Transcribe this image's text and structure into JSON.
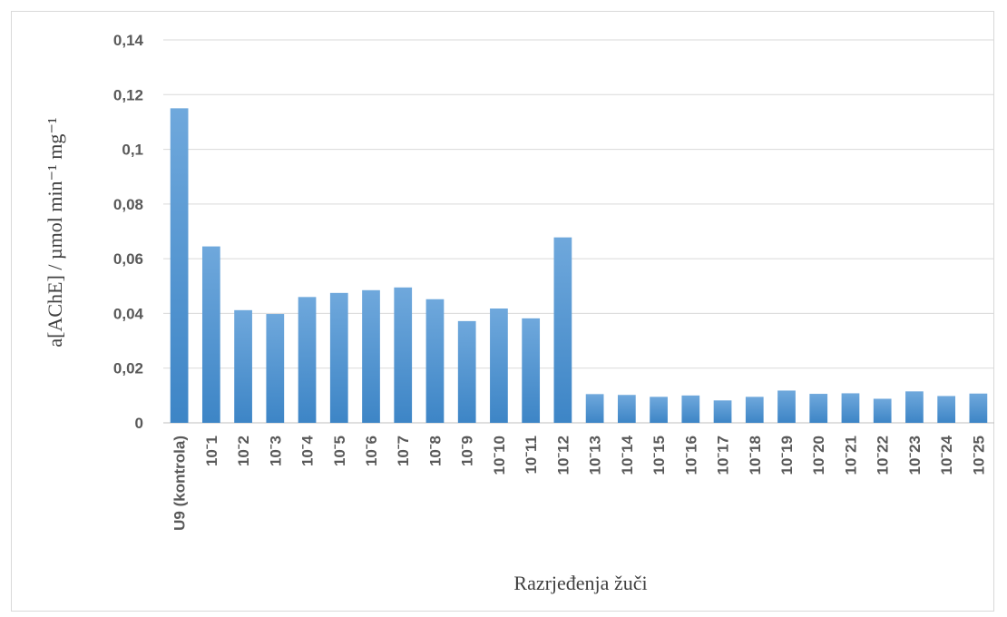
{
  "chart_data": {
    "type": "bar",
    "xlabel": "Razrjeđenja žuči",
    "ylabel": "a[AChE] / µmol min⁻¹ mg⁻¹",
    "ylim": [
      0,
      0.14
    ],
    "yticks": [
      "0",
      "0,02",
      "0,04",
      "0,06",
      "0,08",
      "0,1",
      "0,12",
      "0,14"
    ],
    "ytick_values": [
      0,
      0.02,
      0.04,
      0.06,
      0.08,
      0.1,
      0.12,
      0.14
    ],
    "grid": true,
    "legend": "none",
    "bar_color": "#5b9bd5",
    "categories": [
      "U9 (kontrola)",
      "10ˉ1",
      "10ˉ2",
      "10ˉ3",
      "10ˉ4",
      "10ˉ5",
      "10ˉ6",
      "10ˉ7",
      "10ˉ8",
      "10ˉ9",
      "10ˉ10",
      "10ˉ11",
      "10ˉ12",
      "10ˉ13",
      "10ˉ14",
      "10ˉ15",
      "10ˉ16",
      "10ˉ17",
      "10ˉ18",
      "10ˉ19",
      "10ˉ20",
      "10ˉ21",
      "10ˉ22",
      "10ˉ23",
      "10ˉ24",
      "10ˉ25"
    ],
    "values": [
      0.115,
      0.0645,
      0.0412,
      0.0398,
      0.046,
      0.0475,
      0.0485,
      0.0495,
      0.0452,
      0.0372,
      0.0418,
      0.0382,
      0.0678,
      0.0105,
      0.0102,
      0.0095,
      0.01,
      0.0082,
      0.0095,
      0.0118,
      0.0106,
      0.0108,
      0.0088,
      0.0115,
      0.0098,
      0.0107
    ]
  }
}
